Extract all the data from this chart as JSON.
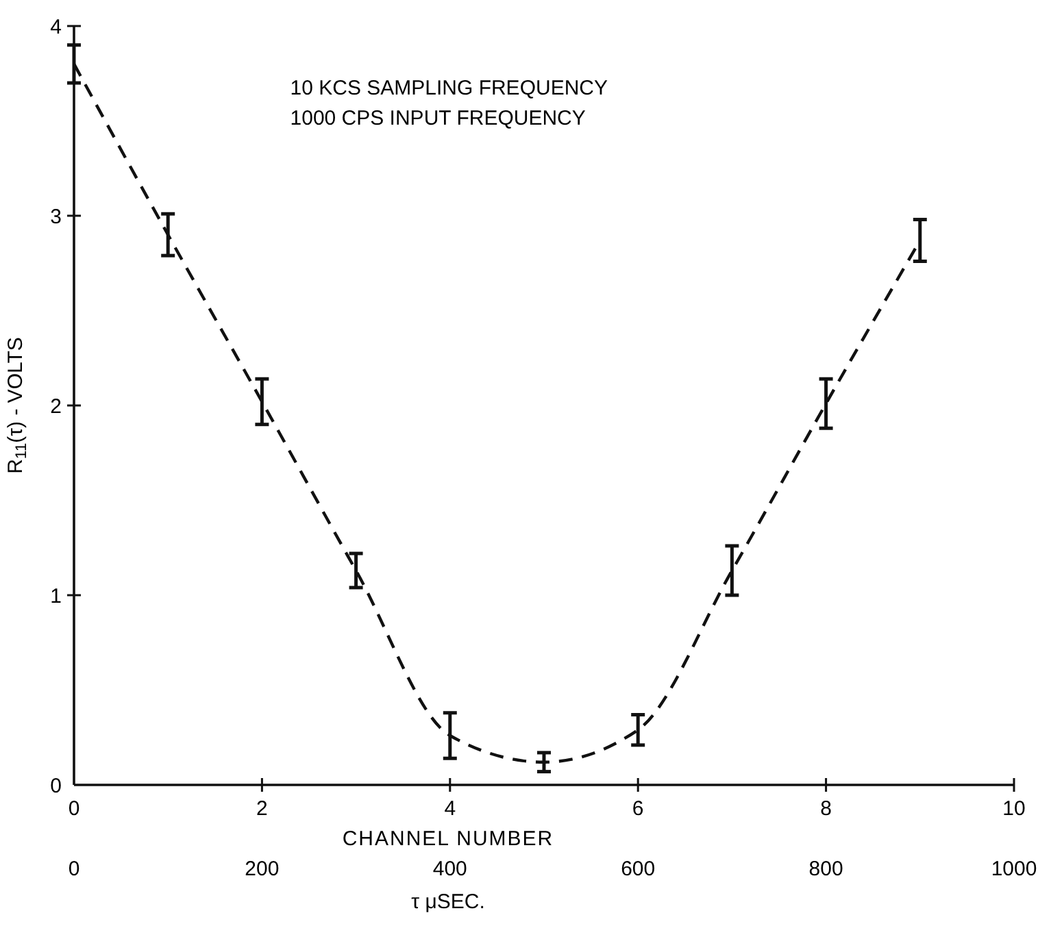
{
  "chart_data": {
    "type": "line",
    "xlabel": "CHANNEL NUMBER",
    "ylabel": "R$_{11}$(τ) - VOLTS",
    "x2label": "τ μSEC.",
    "annotations": [
      "10 KCS SAMPLING FREQUENCY",
      "1000 CPS INPUT FREQUENCY"
    ],
    "x": [
      0,
      1,
      2,
      3,
      4,
      5,
      6,
      7,
      8,
      9
    ],
    "series": [
      {
        "color": "#111111",
        "values": [
          3.8,
          2.9,
          2.02,
          1.13,
          0.26,
          0.12,
          0.29,
          1.13,
          2.01,
          2.87
        ],
        "errors": [
          0.1,
          0.11,
          0.12,
          0.09,
          0.12,
          0.05,
          0.08,
          0.13,
          0.13,
          0.11
        ]
      }
    ],
    "xlim": [
      0,
      10
    ],
    "xticks": [
      0,
      2,
      4,
      6,
      8,
      10
    ],
    "x2lim": [
      0,
      1000
    ],
    "x2ticks": [
      0,
      200,
      400,
      600,
      800,
      1000
    ],
    "ylim": [
      0,
      4
    ],
    "yticks": [
      0,
      1,
      2,
      3,
      4
    ],
    "grid": false,
    "marker": "none",
    "line_style": "dashed"
  }
}
